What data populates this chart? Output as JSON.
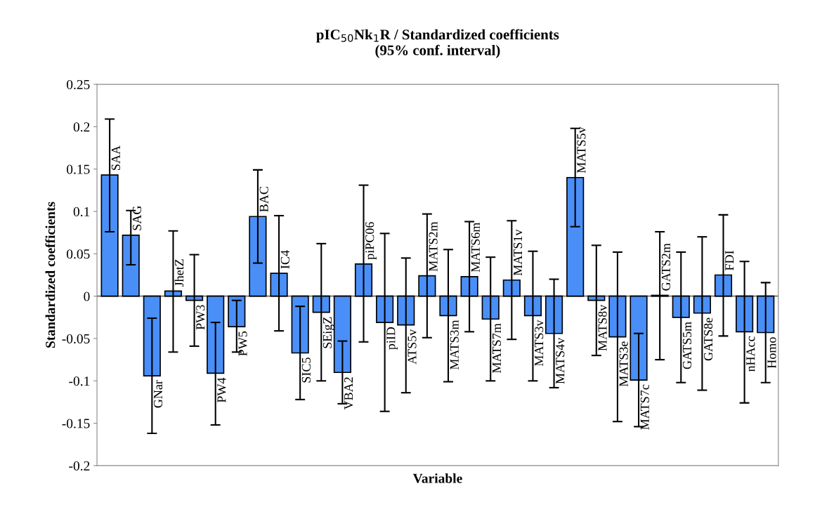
{
  "chart_data": {
    "type": "bar",
    "title": "pIC$_{50}$Nk$_{1}$R / Standardized coefficients\n(95% conf. interval)",
    "xlabel": "Variable",
    "ylabel": "Standardized coefficients",
    "categories": [
      "SAA",
      "SAG",
      "GNar",
      "JhetZ",
      "PW3",
      "PW4",
      "PW5",
      "BAC",
      "IC4",
      "SIC5",
      "SEigZ",
      "VBA2",
      "piPC06",
      "piID",
      "ATS5v",
      "MATS2m",
      "MATS3m",
      "MATS6m",
      "MATS7m",
      "MATS1v",
      "MATS3v",
      "MATS4v",
      "MATS5v",
      "MATS8v",
      "MATS3e",
      "MATS7c",
      "GATS2m",
      "GATS5m",
      "GATS8e",
      "FDI",
      "nHAcc",
      "Homo"
    ],
    "values": [
      0.143,
      0.072,
      -0.094,
      0.006,
      -0.005,
      -0.091,
      -0.036,
      0.094,
      0.027,
      -0.067,
      -0.019,
      -0.09,
      0.038,
      -0.031,
      -0.034,
      0.024,
      -0.023,
      0.023,
      -0.027,
      0.019,
      -0.023,
      -0.044,
      0.14,
      -0.005,
      -0.048,
      -0.099,
      0.001,
      -0.025,
      -0.02,
      0.025,
      -0.042,
      -0.043
    ],
    "errors": [
      [
        0.076,
        0.209
      ],
      [
        0.037,
        0.101
      ],
      [
        -0.162,
        -0.026
      ],
      [
        -0.066,
        0.077
      ],
      [
        -0.059,
        0.049
      ],
      [
        -0.152,
        -0.031
      ],
      [
        -0.066,
        -0.005
      ],
      [
        0.039,
        0.149
      ],
      [
        -0.041,
        0.095
      ],
      [
        -0.122,
        -0.012
      ],
      [
        -0.1,
        0.062
      ],
      [
        -0.127,
        -0.053
      ],
      [
        -0.054,
        0.131
      ],
      [
        -0.136,
        0.074
      ],
      [
        -0.114,
        0.045
      ],
      [
        -0.049,
        0.097
      ],
      [
        -0.101,
        0.055
      ],
      [
        -0.042,
        0.088
      ],
      [
        -0.1,
        0.046
      ],
      [
        -0.051,
        0.089
      ],
      [
        -0.1,
        0.053
      ],
      [
        -0.108,
        0.02
      ],
      [
        0.082,
        0.198
      ],
      [
        -0.07,
        0.06
      ],
      [
        -0.148,
        0.052
      ],
      [
        -0.154,
        -0.044
      ],
      [
        -0.075,
        0.076
      ],
      [
        -0.102,
        0.052
      ],
      [
        -0.111,
        0.07
      ],
      [
        -0.047,
        0.096
      ],
      [
        -0.126,
        0.041
      ],
      [
        -0.102,
        0.016
      ]
    ],
    "color": "#4a8ff7",
    "ylim": [
      -0.2,
      0.25
    ],
    "yticks": [
      -0.2,
      -0.15,
      -0.1,
      -0.05,
      0,
      0.05,
      0.1,
      0.15,
      0.2,
      0.25
    ],
    "grid": false,
    "legend": false
  }
}
